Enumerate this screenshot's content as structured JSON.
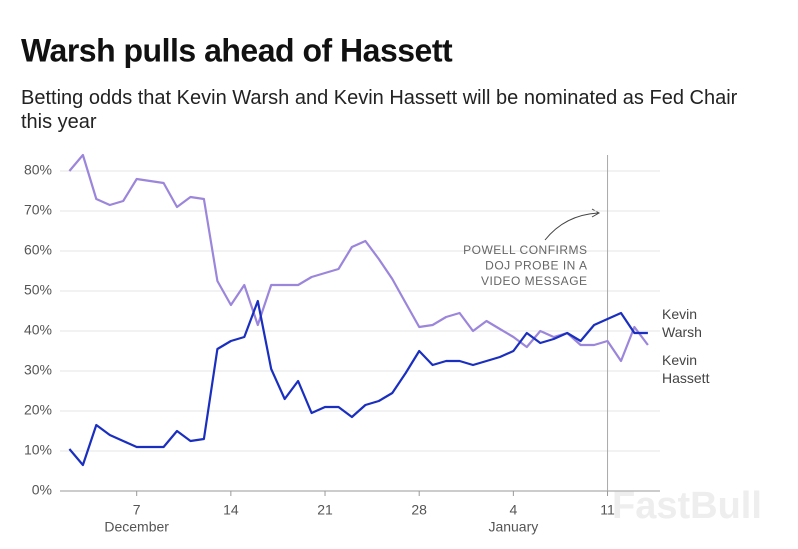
{
  "chart_data": {
    "type": "line",
    "title": "Warsh pulls ahead of Hassett",
    "subtitle": "Betting odds that Kevin Warsh and Kevin Hassett will be nominated as Fed Chair this year",
    "x": [
      2,
      3,
      4,
      5,
      6,
      7,
      8,
      9,
      10,
      11,
      12,
      13,
      14,
      15,
      16,
      17,
      18,
      19,
      20,
      21,
      22,
      23,
      24,
      25,
      26,
      27,
      28,
      29,
      30,
      31,
      32,
      33,
      34,
      35,
      36,
      37,
      38,
      39,
      40,
      41,
      42,
      43,
      44,
      45
    ],
    "series": [
      {
        "name": "Kevin Warsh",
        "color": "#1a2fc0",
        "values": [
          10.5,
          6.5,
          16.5,
          14,
          12.5,
          11,
          11,
          11,
          15,
          12.5,
          13,
          35.5,
          37.5,
          38.5,
          47.5,
          30.5,
          23,
          27.5,
          19.5,
          21,
          21,
          18.5,
          21.5,
          22.5,
          24.5,
          29.5,
          35,
          31.5,
          32.5,
          32.5,
          31.5,
          32.5,
          33.5,
          35,
          39.5,
          37,
          38,
          39.5,
          37.5,
          41.5,
          43,
          44.5,
          39.5,
          39.5
        ]
      },
      {
        "name": "Kevin Hassett",
        "color": "#9b86db",
        "values": [
          80,
          84,
          73,
          71.5,
          72.5,
          78,
          77.5,
          77,
          71,
          73.5,
          73,
          52.5,
          46.5,
          51.5,
          41.5,
          51.5,
          51.5,
          51.5,
          53.5,
          54.5,
          55.5,
          61,
          62.5,
          58,
          53,
          47,
          41,
          41.5,
          43.5,
          44.5,
          40,
          42.5,
          40.5,
          38.5,
          36,
          40,
          38.5,
          39.5,
          36.5,
          36.5,
          37.5,
          32.5,
          41,
          36.5
        ]
      }
    ],
    "xlim": [
      1.3,
      45.9
    ],
    "xticks": [
      {
        "value": 7,
        "label": "7",
        "sublabel": "December"
      },
      14,
      21,
      28,
      {
        "value": 35,
        "label": "4",
        "sublabel": "January"
      },
      {
        "value": 42,
        "label": "11"
      }
    ],
    "ylim": [
      0,
      84
    ],
    "yticks": [
      {
        "value": 0,
        "label": "0%"
      },
      {
        "value": 10,
        "label": "10%"
      },
      {
        "value": 20,
        "label": "20%"
      },
      {
        "value": 30,
        "label": "30%"
      },
      {
        "value": 40,
        "label": "40%"
      },
      {
        "value": 50,
        "label": "50%"
      },
      {
        "value": 60,
        "label": "60%"
      },
      {
        "value": 70,
        "label": "70%"
      },
      {
        "value": 80,
        "label": "80%"
      }
    ],
    "grid": true,
    "annotation": {
      "x": 42,
      "lines": [
        "POWELL CONFIRMS",
        "DOJ PROBE IN A",
        "VIDEO MESSAGE"
      ]
    },
    "watermark": "FastBull"
  }
}
